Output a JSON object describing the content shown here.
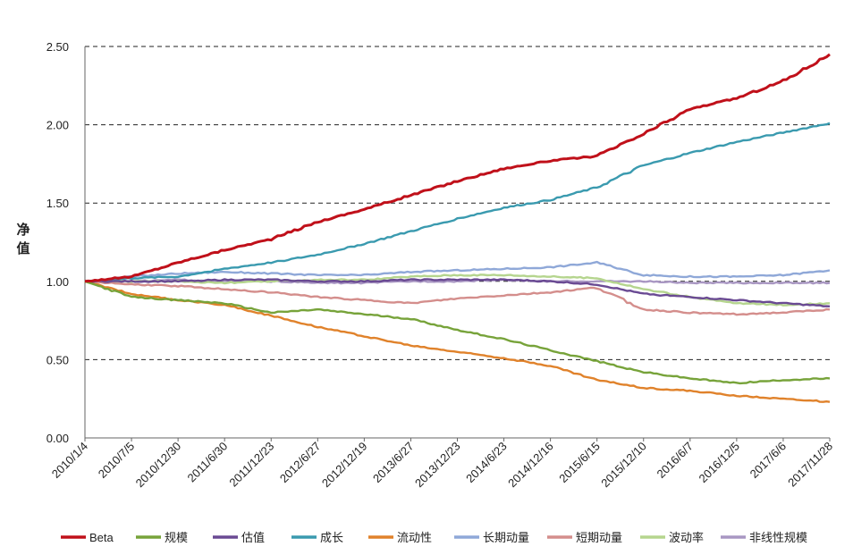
{
  "chart_data": {
    "type": "line",
    "title": "",
    "xlabel": "",
    "ylabel": "净值",
    "ylim": [
      0,
      2.5
    ],
    "y_ticks": [
      "0.00",
      "0.50",
      "1.00",
      "1.50",
      "2.00",
      "2.50"
    ],
    "x_tick_labels": [
      "2010/1/4",
      "2010/7/5",
      "2010/12/30",
      "2011/6/30",
      "2011/12/23",
      "2012/6/27",
      "2012/12/19",
      "2013/6/27",
      "2013/12/23",
      "2014/6/23",
      "2014/12/16",
      "2015/6/15",
      "2015/12/10",
      "2016/6/7",
      "2016/12/5",
      "2017/6/6",
      "2017/11/28"
    ],
    "grid": "horizontal-dashed",
    "legend_position": "bottom",
    "series": [
      {
        "name": "Beta",
        "color": "#C0101A",
        "values": [
          1.0,
          1.03,
          1.12,
          1.2,
          1.27,
          1.38,
          1.46,
          1.55,
          1.64,
          1.72,
          1.77,
          1.8,
          1.94,
          2.1,
          2.17,
          2.28,
          2.45
        ]
      },
      {
        "name": "规模",
        "color": "#77A33A",
        "values": [
          1.0,
          0.9,
          0.88,
          0.86,
          0.8,
          0.82,
          0.79,
          0.76,
          0.69,
          0.63,
          0.56,
          0.49,
          0.42,
          0.38,
          0.35,
          0.37,
          0.38
        ]
      },
      {
        "name": "估值",
        "color": "#6A4A93",
        "values": [
          1.0,
          1.0,
          1.0,
          1.01,
          1.01,
          1.0,
          1.0,
          1.01,
          1.01,
          1.01,
          1.0,
          0.98,
          0.92,
          0.9,
          0.88,
          0.86,
          0.84
        ]
      },
      {
        "name": "成长",
        "color": "#3A9AAF",
        "values": [
          1.0,
          1.02,
          1.03,
          1.08,
          1.12,
          1.17,
          1.24,
          1.32,
          1.4,
          1.47,
          1.52,
          1.6,
          1.74,
          1.82,
          1.89,
          1.95,
          2.01
        ]
      },
      {
        "name": "流动性",
        "color": "#E0822B",
        "values": [
          1.0,
          0.92,
          0.88,
          0.85,
          0.78,
          0.71,
          0.65,
          0.59,
          0.55,
          0.51,
          0.46,
          0.37,
          0.32,
          0.3,
          0.27,
          0.25,
          0.23
        ]
      },
      {
        "name": "长期动量",
        "color": "#8FA8D8",
        "values": [
          1.0,
          1.03,
          1.05,
          1.06,
          1.05,
          1.04,
          1.04,
          1.06,
          1.07,
          1.08,
          1.09,
          1.12,
          1.04,
          1.03,
          1.03,
          1.04,
          1.07
        ]
      },
      {
        "name": "短期动量",
        "color": "#D48E8C",
        "values": [
          1.0,
          0.98,
          0.97,
          0.95,
          0.93,
          0.9,
          0.88,
          0.86,
          0.89,
          0.91,
          0.93,
          0.96,
          0.82,
          0.8,
          0.79,
          0.8,
          0.82
        ]
      },
      {
        "name": "波动率",
        "color": "#B5D58E",
        "values": [
          1.0,
          1.0,
          1.0,
          0.99,
          1.0,
          1.01,
          1.01,
          1.03,
          1.04,
          1.04,
          1.03,
          1.02,
          0.95,
          0.9,
          0.86,
          0.85,
          0.86
        ]
      },
      {
        "name": "非线性规模",
        "color": "#A997C3",
        "values": [
          1.0,
          1.0,
          1.01,
          1.0,
          1.0,
          0.99,
          0.99,
          1.0,
          1.0,
          1.01,
          1.0,
          1.0,
          1.0,
          0.99,
          0.99,
          0.99,
          0.99
        ]
      }
    ]
  }
}
